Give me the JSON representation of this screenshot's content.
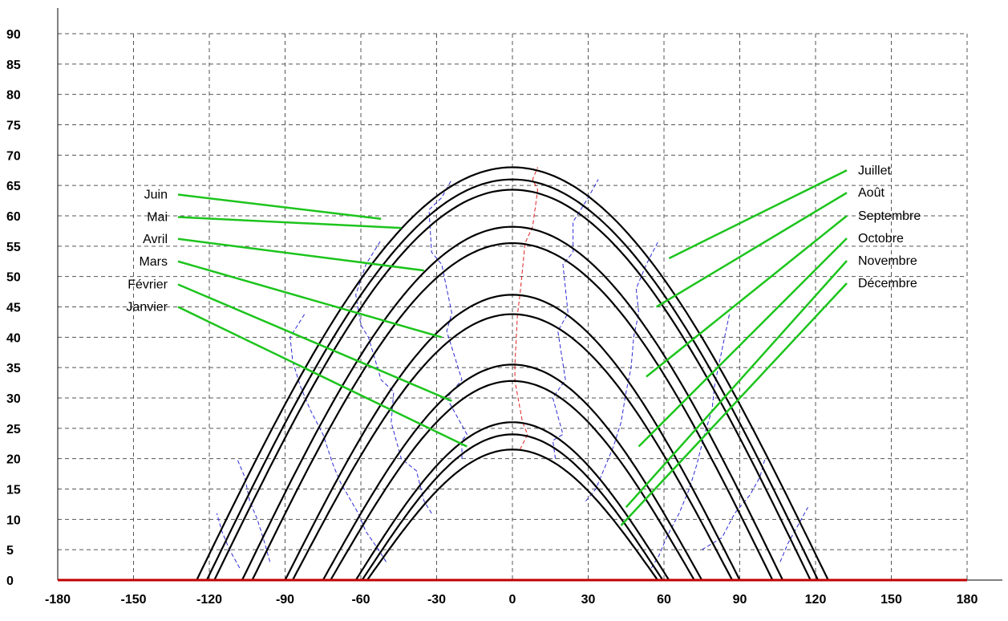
{
  "colors": {
    "sun_path": "#000000",
    "hour_line": "#2b2bd6",
    "noon_line": "#e02020",
    "leader": "#1dc41d",
    "horizon": "#c00000",
    "grid": "#555555",
    "axis": "#000000"
  },
  "chart_data": {
    "type": "line",
    "title": "",
    "xlabel": "",
    "ylabel": "",
    "xlim": [
      -180,
      180
    ],
    "ylim": [
      0,
      90
    ],
    "grid": true,
    "x_ticks": [
      "-180",
      "-150",
      "-120",
      "-90",
      "-60",
      "-30",
      "0",
      "30",
      "60",
      "90",
      "120",
      "150",
      "180"
    ],
    "y_ticks": [
      "0",
      "5",
      "10",
      "15",
      "20",
      "25",
      "30",
      "35",
      "40",
      "45",
      "50",
      "55",
      "60",
      "65",
      "70",
      "75",
      "80",
      "85",
      "90"
    ],
    "series": [
      {
        "name": "Juin",
        "peak": 68,
        "half_width": 125
      },
      {
        "name": "Juillet",
        "peak": 66,
        "half_width": 121
      },
      {
        "name": "Mai",
        "peak": 64.3,
        "half_width": 118
      },
      {
        "name": "Août",
        "peak": 58.2,
        "half_width": 107
      },
      {
        "name": "Avril",
        "peak": 55.5,
        "half_width": 103
      },
      {
        "name": "Septembre",
        "peak": 47,
        "half_width": 90
      },
      {
        "name": "Mars",
        "peak": 43.8,
        "half_width": 87
      },
      {
        "name": "Octobre",
        "peak": 35.5,
        "half_width": 75
      },
      {
        "name": "Février",
        "peak": 32.8,
        "half_width": 72
      },
      {
        "name": "Novembre",
        "peak": 26,
        "half_width": 62
      },
      {
        "name": "Janvier",
        "peak": 24,
        "half_width": 59.5
      },
      {
        "name": "Décembre",
        "peak": 21.5,
        "half_width": 57.5
      }
    ],
    "left_labels": [
      {
        "text": "Juin",
        "y": 63.5,
        "target": [
          -52,
          59.5
        ]
      },
      {
        "text": "Mai",
        "y": 59.8,
        "target": [
          -44,
          58
        ]
      },
      {
        "text": "Avril",
        "y": 56.2,
        "target": [
          -35,
          51
        ]
      },
      {
        "text": "Mars",
        "y": 52.5,
        "target": [
          -28,
          40
        ]
      },
      {
        "text": "Février",
        "y": 48.7,
        "target": [
          -24,
          29.5
        ]
      },
      {
        "text": "Janvier",
        "y": 45,
        "target": [
          -18,
          22
        ]
      }
    ],
    "right_labels": [
      {
        "text": "Juillet",
        "y": 67.5,
        "target": [
          62,
          53
        ]
      },
      {
        "text": "Août",
        "y": 63.8,
        "target": [
          57,
          45
        ]
      },
      {
        "text": "Septembre",
        "y": 60,
        "target": [
          53,
          33.5
        ]
      },
      {
        "text": "Octobre",
        "y": 56.3,
        "target": [
          50,
          22
        ]
      },
      {
        "text": "Novembre",
        "y": 52.6,
        "target": [
          45,
          12
        ]
      },
      {
        "text": "Décembre",
        "y": 48.9,
        "target": [
          43,
          9
        ]
      }
    ],
    "hour_lines": [
      {
        "hour": "noon",
        "points": [
          [
            3,
            21.5
          ],
          [
            6,
            24
          ],
          [
            4,
            26
          ],
          [
            1,
            32.8
          ],
          [
            1,
            35.5
          ],
          [
            2,
            43.8
          ],
          [
            3,
            47
          ],
          [
            5,
            55.5
          ],
          [
            8,
            58.2
          ],
          [
            10,
            64.3
          ],
          [
            8,
            66
          ],
          [
            10,
            68
          ]
        ]
      },
      {
        "hour": "-1h",
        "points": [
          [
            -20,
            20
          ],
          [
            -20,
            23
          ],
          [
            -18,
            24
          ],
          [
            -26,
            30
          ],
          [
            -20,
            33
          ],
          [
            -26,
            41
          ],
          [
            -24,
            44
          ],
          [
            -28,
            52
          ],
          [
            -32,
            54
          ],
          [
            -33,
            61
          ],
          [
            -28,
            63
          ],
          [
            -24,
            66
          ]
        ]
      },
      {
        "hour": "+1h",
        "points": [
          [
            17,
            20
          ],
          [
            16,
            23
          ],
          [
            20,
            24
          ],
          [
            16,
            30
          ],
          [
            21,
            33
          ],
          [
            18,
            41
          ],
          [
            22,
            44
          ],
          [
            20,
            52
          ],
          [
            24,
            54
          ],
          [
            24,
            59
          ],
          [
            30,
            63
          ],
          [
            34,
            66
          ]
        ]
      },
      {
        "hour": "-2h",
        "points": [
          [
            -32,
            11
          ],
          [
            -35,
            13
          ],
          [
            -38,
            18
          ],
          [
            -44,
            20
          ],
          [
            -48,
            26
          ],
          [
            -47,
            31
          ],
          [
            -52,
            33
          ],
          [
            -57,
            40
          ],
          [
            -60,
            42
          ],
          [
            -62,
            47
          ],
          [
            -58,
            52
          ],
          [
            -52,
            56
          ]
        ]
      },
      {
        "hour": "+2h",
        "points": [
          [
            29,
            13
          ],
          [
            33,
            15
          ],
          [
            36,
            18
          ],
          [
            40,
            22
          ],
          [
            43,
            26
          ],
          [
            45,
            31
          ],
          [
            47,
            35
          ],
          [
            48,
            40
          ],
          [
            50,
            44
          ],
          [
            49,
            48
          ],
          [
            53,
            52
          ],
          [
            58,
            56
          ]
        ]
      },
      {
        "hour": "-3h",
        "points": [
          [
            -50,
            3
          ],
          [
            -53,
            5
          ],
          [
            -58,
            8
          ],
          [
            -61,
            11
          ],
          [
            -68,
            16
          ],
          [
            -71,
            19
          ],
          [
            -75,
            24
          ],
          [
            -80,
            28
          ],
          [
            -84,
            32
          ],
          [
            -87,
            36
          ],
          [
            -88,
            40
          ],
          [
            -82,
            44
          ]
        ]
      },
      {
        "hour": "+3h",
        "points": [
          [
            55,
            2
          ],
          [
            58,
            4
          ],
          [
            61,
            7
          ],
          [
            66,
            11
          ],
          [
            70,
            15
          ],
          [
            73,
            19
          ],
          [
            76,
            24
          ],
          [
            79,
            28
          ],
          [
            80,
            32
          ],
          [
            82,
            36
          ],
          [
            84,
            40
          ],
          [
            86,
            44
          ]
        ]
      },
      {
        "hour": "-4h",
        "points": [
          [
            -96,
            3
          ],
          [
            -98,
            6
          ],
          [
            -101,
            10
          ],
          [
            -104,
            13
          ],
          [
            -106,
            17
          ],
          [
            -109,
            20
          ]
        ]
      },
      {
        "hour": "+4h",
        "points": [
          [
            75,
            5
          ],
          [
            83,
            7
          ],
          [
            88,
            11
          ],
          [
            94,
            14
          ],
          [
            98,
            17
          ],
          [
            100,
            20
          ]
        ]
      },
      {
        "hour": "-5h",
        "points": [
          [
            -108,
            2
          ],
          [
            -112,
            5
          ],
          [
            -115,
            8
          ],
          [
            -117,
            11
          ]
        ]
      },
      {
        "hour": "+5h",
        "points": [
          [
            106,
            3
          ],
          [
            109,
            6
          ],
          [
            113,
            9
          ],
          [
            117,
            12
          ]
        ]
      }
    ]
  }
}
